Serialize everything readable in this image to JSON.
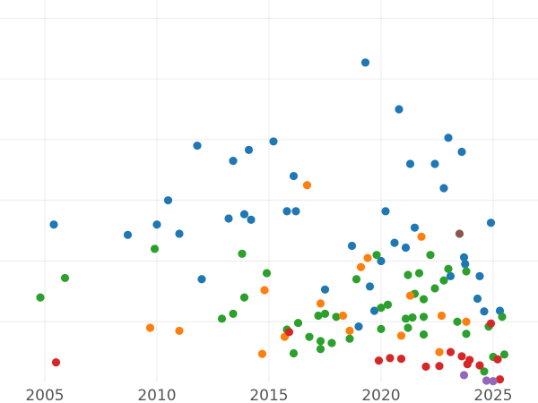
{
  "chart_data": {
    "type": "scatter",
    "title": "",
    "xlabel": "",
    "ylabel": "",
    "xlim": [
      2003.0,
      2027.0
    ],
    "ylim": [
      0,
      6.3
    ],
    "grid": true,
    "x_ticks": [
      2005,
      2010,
      2015,
      2020,
      2025
    ],
    "x_tick_labels": [
      "2005",
      "2010",
      "2015",
      "2020",
      "2025"
    ],
    "y_gridlines": [
      1,
      2,
      3,
      4,
      5,
      6
    ],
    "series": [
      {
        "name": "blue",
        "color": "#1f77b4",
        "points": [
          [
            2005.4,
            2.6
          ],
          [
            2008.7,
            2.43
          ],
          [
            2010.0,
            2.6
          ],
          [
            2010.5,
            3.0
          ],
          [
            2011.0,
            2.45
          ],
          [
            2011.8,
            3.9
          ],
          [
            2012.0,
            1.7
          ],
          [
            2013.2,
            2.7
          ],
          [
            2013.4,
            3.65
          ],
          [
            2013.9,
            2.77
          ],
          [
            2014.1,
            3.83
          ],
          [
            2014.2,
            2.68
          ],
          [
            2015.2,
            3.97
          ],
          [
            2015.8,
            2.82
          ],
          [
            2016.1,
            3.4
          ],
          [
            2016.2,
            2.82
          ],
          [
            2017.5,
            1.53
          ],
          [
            2018.7,
            2.25
          ],
          [
            2019.0,
            0.92
          ],
          [
            2019.3,
            5.27
          ],
          [
            2019.5,
            1.58
          ],
          [
            2019.7,
            1.18
          ],
          [
            2020.0,
            2.0
          ],
          [
            2020.2,
            2.82
          ],
          [
            2020.6,
            2.3
          ],
          [
            2020.8,
            4.5
          ],
          [
            2021.1,
            2.22
          ],
          [
            2021.3,
            3.6
          ],
          [
            2021.5,
            2.55
          ],
          [
            2022.4,
            3.6
          ],
          [
            2022.8,
            3.2
          ],
          [
            2023.0,
            4.03
          ],
          [
            2023.1,
            1.75
          ],
          [
            2023.6,
            3.8
          ],
          [
            2023.7,
            2.06
          ],
          [
            2023.75,
            1.95
          ],
          [
            2024.3,
            1.38
          ],
          [
            2024.4,
            1.75
          ],
          [
            2024.6,
            1.17
          ],
          [
            2024.9,
            2.63
          ],
          [
            2025.3,
            1.18
          ]
        ]
      },
      {
        "name": "green",
        "color": "#2ca02c",
        "points": [
          [
            2004.8,
            1.4
          ],
          [
            2005.9,
            1.72
          ],
          [
            2009.9,
            2.2
          ],
          [
            2012.9,
            1.05
          ],
          [
            2013.4,
            1.13
          ],
          [
            2013.8,
            2.12
          ],
          [
            2013.9,
            1.4
          ],
          [
            2014.9,
            1.8
          ],
          [
            2015.8,
            0.87
          ],
          [
            2016.1,
            0.48
          ],
          [
            2016.3,
            0.98
          ],
          [
            2016.8,
            0.75
          ],
          [
            2017.2,
            1.1
          ],
          [
            2017.3,
            0.68
          ],
          [
            2017.3,
            0.55
          ],
          [
            2017.5,
            1.13
          ],
          [
            2017.8,
            0.65
          ],
          [
            2018.0,
            1.08
          ],
          [
            2018.6,
            0.72
          ],
          [
            2018.9,
            1.7
          ],
          [
            2019.8,
            2.1
          ],
          [
            2020.0,
            1.23
          ],
          [
            2020.0,
            0.88
          ],
          [
            2020.3,
            1.28
          ],
          [
            2021.1,
            1.05
          ],
          [
            2021.2,
            0.9
          ],
          [
            2021.2,
            1.77
          ],
          [
            2021.4,
            1.07
          ],
          [
            2021.5,
            1.46
          ],
          [
            2021.7,
            1.8
          ],
          [
            2021.9,
            0.79
          ],
          [
            2021.9,
            1.37
          ],
          [
            2021.9,
            1.08
          ],
          [
            2022.2,
            2.1
          ],
          [
            2022.4,
            1.55
          ],
          [
            2022.8,
            1.68
          ],
          [
            2023.0,
            1.87
          ],
          [
            2023.4,
            1.0
          ],
          [
            2023.8,
            0.8
          ],
          [
            2023.8,
            1.83
          ],
          [
            2024.6,
            0.18
          ],
          [
            2024.8,
            0.92
          ],
          [
            2025.0,
            0.42
          ],
          [
            2025.4,
            1.08
          ],
          [
            2025.5,
            0.46
          ]
        ]
      },
      {
        "name": "orange",
        "color": "#ff7f0e",
        "points": [
          [
            2009.7,
            0.9
          ],
          [
            2011.0,
            0.85
          ],
          [
            2014.7,
            0.47
          ],
          [
            2014.8,
            1.52
          ],
          [
            2016.7,
            3.25
          ],
          [
            2015.7,
            0.75
          ],
          [
            2017.3,
            1.3
          ],
          [
            2018.3,
            1.1
          ],
          [
            2018.6,
            0.85
          ],
          [
            2019.1,
            1.9
          ],
          [
            2019.4,
            2.05
          ],
          [
            2020.9,
            0.77
          ],
          [
            2021.3,
            1.43
          ],
          [
            2021.8,
            2.4
          ],
          [
            2022.6,
            0.5
          ],
          [
            2022.7,
            1.1
          ],
          [
            2023.8,
            1.0
          ]
        ]
      },
      {
        "name": "red",
        "color": "#d62728",
        "points": [
          [
            2005.5,
            0.33
          ],
          [
            2015.9,
            0.83
          ],
          [
            2019.9,
            0.36
          ],
          [
            2020.4,
            0.4
          ],
          [
            2020.9,
            0.39
          ],
          [
            2022.0,
            0.26
          ],
          [
            2022.6,
            0.27
          ],
          [
            2023.1,
            0.5
          ],
          [
            2023.6,
            0.43
          ],
          [
            2023.85,
            0.3
          ],
          [
            2023.95,
            0.37
          ],
          [
            2024.4,
            0.28
          ],
          [
            2024.9,
            0.97
          ],
          [
            2025.2,
            0.38
          ],
          [
            2025.3,
            0.05
          ]
        ]
      },
      {
        "name": "brown",
        "color": "#8c564b",
        "points": [
          [
            2023.5,
            2.45
          ]
        ]
      },
      {
        "name": "purple",
        "color": "#9467bd",
        "points": [
          [
            2023.7,
            0.12
          ],
          [
            2024.7,
            0.03
          ],
          [
            2025.0,
            0.02
          ]
        ]
      }
    ]
  }
}
